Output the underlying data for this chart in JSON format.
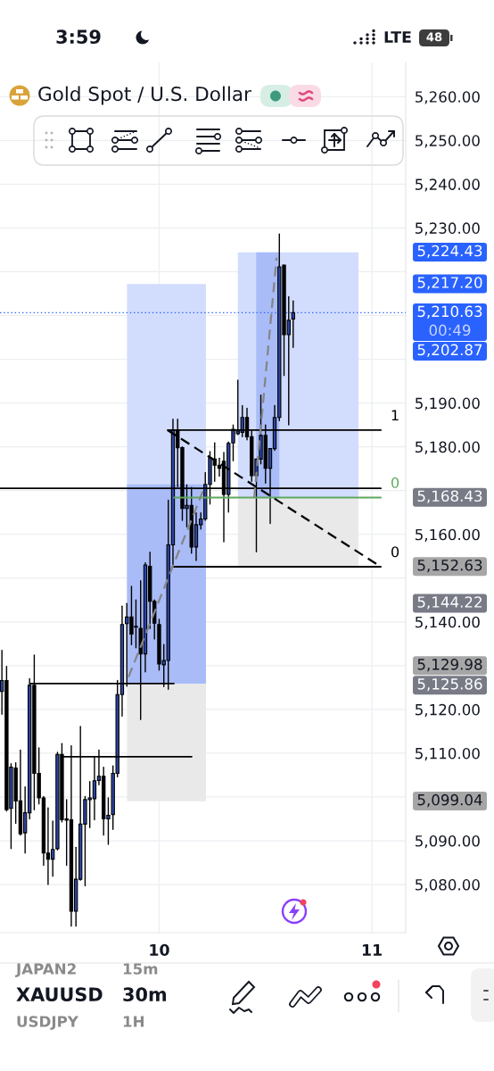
{
  "chart_data": {
    "type": "candlestick",
    "title": "Gold Spot / U.S. Dollar",
    "x": [
      9.261,
      9.283,
      9.304,
      9.326,
      9.348,
      9.37,
      9.391,
      9.413,
      9.435,
      9.457,
      9.478,
      9.5,
      9.522,
      9.543,
      9.565,
      9.587,
      9.609,
      9.63,
      9.652,
      9.674,
      9.696,
      9.717,
      9.739,
      9.761,
      9.783,
      9.804,
      9.826,
      9.848,
      9.87,
      9.891,
      9.913,
      9.935,
      9.957,
      9.978,
      10.0,
      10.022,
      10.043,
      10.065,
      10.087,
      10.109,
      10.13,
      10.152,
      10.174,
      10.196,
      10.217,
      10.239,
      10.261,
      10.283,
      10.304,
      10.326,
      10.348,
      10.37,
      10.391,
      10.413,
      10.435,
      10.457,
      10.478,
      10.5,
      10.522,
      10.543,
      10.565,
      10.587,
      10.609,
      10.63
    ],
    "ohlc": [
      [
        5124.1,
        5133.5,
        5118.9,
        5126.6
      ],
      [
        5126.6,
        5129.8,
        5096.8,
        5097.1
      ],
      [
        5097.4,
        5107.6,
        5088.2,
        5106.8
      ],
      [
        5106.6,
        5107.8,
        5094.0,
        5099.1
      ],
      [
        5099.1,
        5110.7,
        5091.3,
        5091.6
      ],
      [
        5091.8,
        5102.3,
        5087.2,
        5096.4
      ],
      [
        5096.4,
        5127.0,
        5095.0,
        5125.5
      ],
      [
        5125.5,
        5132.4,
        5097.1,
        5105.4
      ],
      [
        5105.4,
        5111.2,
        5098.4,
        5099.8
      ],
      [
        5099.8,
        5100.1,
        5084.4,
        5087.2
      ],
      [
        5087.2,
        5097.5,
        5080.0,
        5085.8
      ],
      [
        5085.8,
        5094.5,
        5081.9,
        5088.0
      ],
      [
        5088.2,
        5110.2,
        5087.9,
        5109.7
      ],
      [
        5109.7,
        5112.2,
        5094.3,
        5094.8
      ],
      [
        5095.0,
        5099.4,
        5084.4,
        5094.7
      ],
      [
        5094.8,
        5111.7,
        5070.5,
        5073.9
      ],
      [
        5073.9,
        5088.5,
        5070.5,
        5081.2
      ],
      [
        5081.2,
        5116.1,
        5081.0,
        5093.8
      ],
      [
        5093.8,
        5100.1,
        5079.7,
        5099.4
      ],
      [
        5099.4,
        5103.5,
        5093.0,
        5099.8
      ],
      [
        5099.6,
        5109.3,
        5094.8,
        5103.7
      ],
      [
        5103.8,
        5110.7,
        5102.8,
        5104.7
      ],
      [
        5104.7,
        5106.8,
        5091.3,
        5095.0
      ],
      [
        5095.0,
        5099.8,
        5089.2,
        5095.8
      ],
      [
        5096.0,
        5107.1,
        5092.6,
        5105.4
      ],
      [
        5105.4,
        5126.6,
        5104.6,
        5123.4
      ],
      [
        5123.4,
        5143.6,
        5118.5,
        5139.4
      ],
      [
        5139.6,
        5144.2,
        5125.3,
        5141.1
      ],
      [
        5141.1,
        5148.1,
        5134.8,
        5137.2
      ],
      [
        5139.0,
        5145.0,
        5134.1,
        5138.8
      ],
      [
        5138.5,
        5149.4,
        5117.7,
        5132.7
      ],
      [
        5132.7,
        5153.5,
        5128.6,
        5153.0
      ],
      [
        5152.7,
        5155.9,
        5138.5,
        5144.7
      ],
      [
        5144.7,
        5145.0,
        5136.1,
        5139.7
      ],
      [
        5139.4,
        5140.6,
        5129.0,
        5130.4
      ],
      [
        5130.2,
        5134.8,
        5125.2,
        5131.2
      ],
      [
        5131.2,
        5167.8,
        5124.6,
        5157.6
      ],
      [
        5157.6,
        5186.3,
        5153.0,
        5183.9
      ],
      [
        5183.9,
        5186.3,
        5170.9,
        5179.8
      ],
      [
        5179.8,
        5180.0,
        5163.2,
        5165.9
      ],
      [
        5165.9,
        5171.3,
        5161.7,
        5166.6
      ],
      [
        5166.6,
        5170.7,
        5155.7,
        5157.1
      ],
      [
        5157.1,
        5164.9,
        5154.0,
        5162.2
      ],
      [
        5162.2,
        5164.9,
        5161.2,
        5163.5
      ],
      [
        5163.5,
        5174.1,
        5163.2,
        5171.4
      ],
      [
        5171.4,
        5178.9,
        5166.9,
        5177.5
      ],
      [
        5177.2,
        5180.9,
        5172.1,
        5175.8
      ],
      [
        5175.8,
        5177.4,
        5173.3,
        5175.1
      ],
      [
        5176.7,
        5178.7,
        5158.3,
        5169.1
      ],
      [
        5169.1,
        5181.1,
        5165.1,
        5180.8
      ],
      [
        5180.9,
        5185.0,
        5176.8,
        5184.0
      ],
      [
        5183.0,
        5195.2,
        5182.8,
        5183.6
      ],
      [
        5183.3,
        5189.4,
        5182.3,
        5186.7
      ],
      [
        5186.7,
        5188.8,
        5181.6,
        5182.3
      ],
      [
        5182.3,
        5183.6,
        5172.1,
        5173.4
      ],
      [
        5173.4,
        5177.2,
        5156.0,
        5177.2
      ],
      [
        5177.2,
        5191.8,
        5176.1,
        5182.6
      ],
      [
        5182.6,
        5185.0,
        5171.7,
        5175.1
      ],
      [
        5175.1,
        5179.6,
        5162.5,
        5179.6
      ],
      [
        5179.6,
        5189.4,
        5179.2,
        5186.7
      ],
      [
        5186.7,
        5228.6,
        5186.0,
        5221.1
      ],
      [
        5221.5,
        5221.5,
        5196.3,
        5205.6
      ],
      [
        5205.6,
        5214.3,
        5185.0,
        5208.9
      ],
      [
        5209.2,
        5213.3,
        5202.7,
        5210.63
      ]
    ],
    "colors": [
      "#2b46a8",
      "#000000",
      "#2b46a8",
      "#000000",
      "#000000",
      "#2b46a8",
      "#2b46a8",
      "#000000",
      "#000000",
      "#000000",
      "#000000",
      "#2b46a8",
      "#2b46a8",
      "#000000",
      "#000000",
      "#000000",
      "#2b46a8",
      "#2b46a8",
      "#2b46a8",
      "#2b46a8",
      "#2b46a8",
      "#2b46a8",
      "#000000",
      "#2b46a8",
      "#2b46a8",
      "#2b46a8",
      "#2b46a8",
      "#2b46a8",
      "#000000",
      "#000000",
      "#000000",
      "#2b46a8",
      "#000000",
      "#000000",
      "#000000",
      "#2b46a8",
      "#2b46a8",
      "#2b46a8",
      "#000000",
      "#000000",
      "#2b46a8",
      "#000000",
      "#2b46a8",
      "#2b46a8",
      "#2b46a8",
      "#2b46a8",
      "#000000",
      "#000000",
      "#000000",
      "#2b46a8",
      "#2b46a8",
      "#2b46a8",
      "#2b46a8",
      "#000000",
      "#000000",
      "#2b46a8",
      "#2b46a8",
      "#000000",
      "#2b46a8",
      "#2b46a8",
      "#2b46a8",
      "#000000",
      "#2b46a8",
      "#2b46a8"
    ],
    "series": [
      {
        "type": "line",
        "x": [
          9.849,
          10.22
        ],
        "values": [
          null,
          null
        ],
        "lower": [
          5125.9,
          5125.9
        ],
        "upper": [
          5217.2,
          5217.2
        ],
        "color": "#d2dcfd"
      },
      {
        "type": "line",
        "x": [
          9.849,
          10.22
        ],
        "values": [
          null,
          null
        ],
        "lower": [
          5125.9,
          5125.9
        ],
        "upper": [
          5171.4,
          5171.4
        ],
        "color": "#a9bcf8"
      },
      {
        "type": "line",
        "x": [
          9.849,
          10.22
        ],
        "values": [
          null,
          null
        ],
        "lower": [
          5099.0,
          5099.0
        ],
        "upper": [
          5125.9,
          5125.9
        ],
        "color": "#e9e9e9"
      },
      {
        "type": "line",
        "x": [
          10.37,
          10.937
        ],
        "values": [
          null,
          null
        ],
        "lower": [
          5168.4,
          5168.4
        ],
        "upper": [
          5224.4,
          5224.4
        ],
        "color": "#d2dcfd"
      },
      {
        "type": "line",
        "x": [
          10.456,
          10.565
        ],
        "values": [
          null,
          null
        ],
        "lower": [
          5168.4,
          5168.4
        ],
        "upper": [
          5224.4,
          5224.4
        ],
        "color": "#a9bcf8"
      },
      {
        "type": "line",
        "x": [
          10.37,
          10.937
        ],
        "values": [
          null,
          null
        ],
        "lower": [
          5152.6,
          5152.6
        ],
        "upper": [
          5168.4,
          5168.4
        ],
        "color": "#e9e9e9"
      },
      {
        "type": "line",
        "x": [
          9.252,
          11.042
        ],
        "values": [
          5170.5,
          5170.5
        ],
        "color": "#000000"
      },
      {
        "type": "line",
        "x": [
          9.395,
          10.069
        ],
        "values": [
          5125.9,
          5125.9
        ],
        "color": "#000000"
      },
      {
        "type": "line",
        "x": [
          9.551,
          10.153
        ],
        "values": [
          5109.2,
          5109.2
        ],
        "color": "#000000"
      },
      {
        "type": "line",
        "name": "1",
        "x": [
          10.04,
          11.042
        ],
        "values": [
          5183.8,
          5183.8
        ],
        "color": "#000000"
      },
      {
        "type": "line",
        "name": "0",
        "x": [
          10.069,
          11.042
        ],
        "values": [
          5168.4,
          5168.4
        ],
        "color": "#5fa85f"
      },
      {
        "type": "line",
        "name": "0",
        "x": [
          10.062,
          11.042
        ],
        "values": [
          5152.6,
          5152.6
        ],
        "color": "#000000"
      },
      {
        "type": "line",
        "x": [
          10.04,
          11.042
        ],
        "values": [
          5183.8,
          5152.6
        ],
        "color": "#000000",
        "line_style": "dashed"
      },
      {
        "type": "line",
        "x": [
          9.856,
          10.206
        ],
        "values": [
          5127.4,
          5169.9
        ],
        "color": "#858585",
        "line_style": "dashed"
      },
      {
        "type": "line",
        "x": [
          10.447,
          10.552
        ],
        "values": [
          5168.4,
          5223.2
        ],
        "color": "#858585",
        "line_style": "dashed"
      }
    ],
    "ref_lines": [
      {
        "axis": "y",
        "value": 5210.63,
        "label": "5,210.63\n00:49",
        "color": "#2962ff",
        "line_style": "dotted"
      }
    ],
    "annotations": [
      "3:59",
      "LTE",
      "48",
      "XAUUSD",
      "30m",
      "JAPAN2",
      "15m",
      "USDJPY",
      "1H",
      "5,224.43",
      "5,217.20",
      "5,202.87",
      "5,168.43",
      "5,152.63",
      "5,144.22",
      "5,129.98",
      "5,125.86",
      "5,099.04"
    ],
    "xlim": [
      9.252,
      11.159
    ],
    "xticks": [
      10,
      11
    ],
    "ylim": [
      5069.0,
      5267.8
    ],
    "yticks": [
      {
        "value": 5080,
        "label": "5,080.00"
      },
      {
        "value": 5090,
        "label": "5,090.00"
      },
      {
        "value": 5100,
        "label": null
      },
      {
        "value": 5110,
        "label": "5,110.00"
      },
      {
        "value": 5120,
        "label": "5,120.00"
      },
      {
        "value": 5130,
        "label": null
      },
      {
        "value": 5140,
        "label": "5,140.00"
      },
      {
        "value": 5150,
        "label": null
      },
      {
        "value": 5160,
        "label": "5,160.00"
      },
      {
        "value": 5170,
        "label": null
      },
      {
        "value": 5180,
        "label": "5,180.00"
      },
      {
        "value": 5190,
        "label": "5,190.00"
      },
      {
        "value": 5200,
        "label": null
      },
      {
        "value": 5210,
        "label": null
      },
      {
        "value": 5220,
        "label": null
      },
      {
        "value": 5230,
        "label": "5,230.00"
      },
      {
        "value": 5240,
        "label": "5,240.00"
      },
      {
        "value": 5250,
        "label": "5,250.00"
      },
      {
        "value": 5260,
        "label": "5,260.00"
      }
    ],
    "grid": true
  }
}
